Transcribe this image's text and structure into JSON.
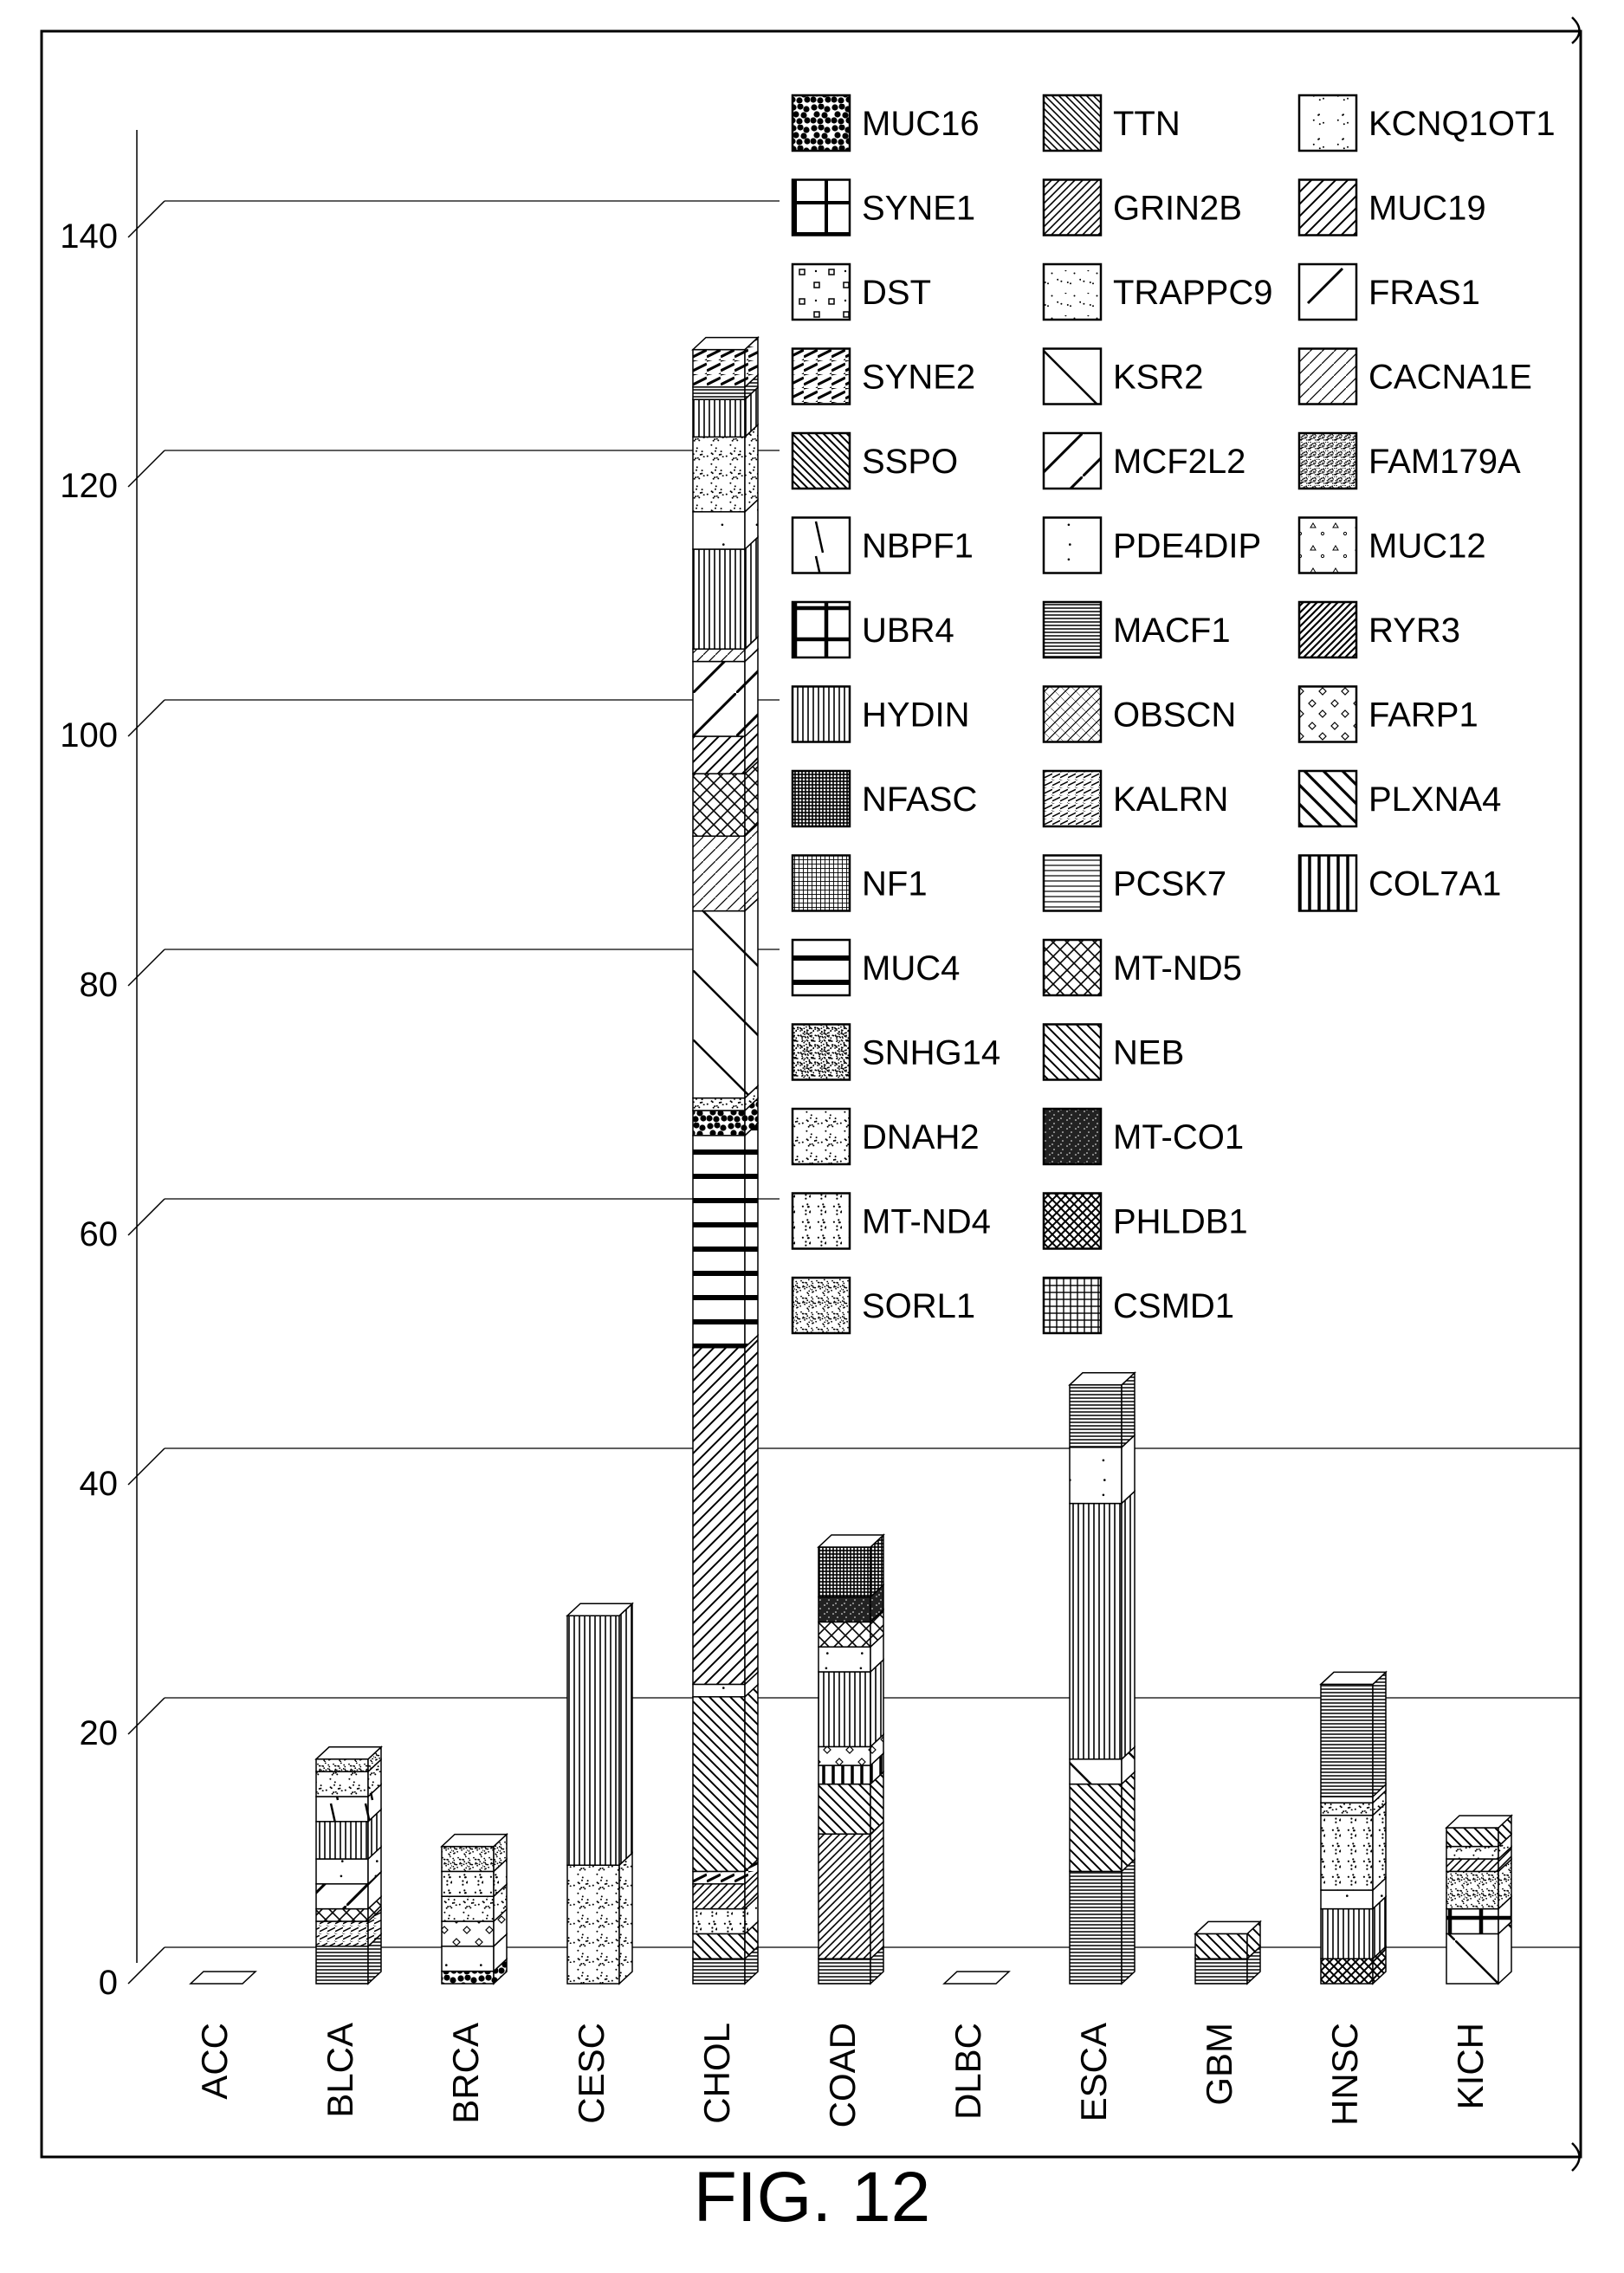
{
  "figure_label": "FIG. 12",
  "chart_data": {
    "type": "bar",
    "stacked": true,
    "projection": "3d",
    "title": "",
    "xlabel": "",
    "ylabel": "",
    "ylim": [
      0,
      150
    ],
    "yticks": [
      0,
      20,
      40,
      60,
      80,
      100,
      120,
      140
    ],
    "grid": "horizontal at 0, 20, 40",
    "legend_position": "top-right, three columns",
    "categories": [
      "ACC",
      "BLCA",
      "BRCA",
      "CESC",
      "CHOL",
      "COAD",
      "DLBC",
      "ESCA",
      "GBM",
      "HNSC",
      "KICH"
    ],
    "legend": [
      "MUC16",
      "SYNE1",
      "DST",
      "SYNE2",
      "SSPO",
      "NBPF1",
      "UBR4",
      "HYDIN",
      "NFASC",
      "NF1",
      "MUC4",
      "SNHG14",
      "DNAH2",
      "MT-ND4",
      "SORL1",
      "TTN",
      "GRIN2B",
      "TRAPPC9",
      "KSR2",
      "MCF2L2",
      "PDE4DIP",
      "MACF1",
      "OBSCN",
      "KALRN",
      "PCSK7",
      "MT-ND5",
      "NEB",
      "MT-CO1",
      "PHLDB1",
      "CSMD1",
      "KCNQ1OT1",
      "MUC19",
      "FRAS1",
      "CACNA1E",
      "FAM179A",
      "MUC12",
      "RYR3",
      "FARP1",
      "PLXNA4",
      "COL7A1"
    ],
    "stacks": {
      "ACC": [],
      "BLCA": [
        {
          "gene": "MACF1",
          "value": 3
        },
        {
          "gene": "KALRN",
          "value": 2
        },
        {
          "gene": "MT-ND5",
          "value": 1
        },
        {
          "gene": "MCF2L2",
          "value": 2
        },
        {
          "gene": "PDE4DIP",
          "value": 2
        },
        {
          "gene": "HYDIN",
          "value": 3
        },
        {
          "gene": "NBPF1",
          "value": 2
        },
        {
          "gene": "DNAH2",
          "value": 2
        },
        {
          "gene": "SORL1",
          "value": 1
        }
      ],
      "BRCA": [
        {
          "gene": "MUC16",
          "value": 1
        },
        {
          "gene": "PDE4DIP",
          "value": 2
        },
        {
          "gene": "FARP1",
          "value": 2
        },
        {
          "gene": "DNAH2",
          "value": 2
        },
        {
          "gene": "MT-ND4",
          "value": 2
        },
        {
          "gene": "SORL1",
          "value": 2
        }
      ],
      "CESC": [
        {
          "gene": "DNAH2",
          "value": 9.5
        },
        {
          "gene": "HYDIN",
          "value": 20
        }
      ],
      "CHOL": [
        {
          "gene": "MACF1",
          "value": 2
        },
        {
          "gene": "NEB",
          "value": 2
        },
        {
          "gene": "MT-ND4",
          "value": 2
        },
        {
          "gene": "GRIN2B",
          "value": 2
        },
        {
          "gene": "SYNE2",
          "value": 1
        },
        {
          "gene": "NEB",
          "value": 14
        },
        {
          "gene": "PDE4DIP",
          "value": 1
        },
        {
          "gene": "MUC19",
          "value": 27
        },
        {
          "gene": "MUC4",
          "value": 17
        },
        {
          "gene": "MUC16",
          "value": 2
        },
        {
          "gene": "DNAH2",
          "value": 1
        },
        {
          "gene": "KSR2",
          "value": 15
        },
        {
          "gene": "CACNA1E",
          "value": 6
        },
        {
          "gene": "MT-ND5",
          "value": 5
        },
        {
          "gene": "MUC19",
          "value": 3
        },
        {
          "gene": "MCF2L2",
          "value": 6
        },
        {
          "gene": "CACNA1E",
          "value": 1
        },
        {
          "gene": "HYDIN",
          "value": 8
        },
        {
          "gene": "PDE4DIP",
          "value": 3
        },
        {
          "gene": "DNAH2",
          "value": 6
        },
        {
          "gene": "HYDIN",
          "value": 3
        },
        {
          "gene": "MACF1",
          "value": 1
        },
        {
          "gene": "SYNE2",
          "value": 3
        }
      ],
      "COAD": [
        {
          "gene": "MACF1",
          "value": 2
        },
        {
          "gene": "GRIN2B",
          "value": 10
        },
        {
          "gene": "NEB",
          "value": 4
        },
        {
          "gene": "COL7A1",
          "value": 1.5
        },
        {
          "gene": "FARP1",
          "value": 1.5
        },
        {
          "gene": "HYDIN",
          "value": 6
        },
        {
          "gene": "PDE4DIP",
          "value": 2
        },
        {
          "gene": "MT-ND5",
          "value": 2
        },
        {
          "gene": "MT-CO1",
          "value": 2
        },
        {
          "gene": "NFASC",
          "value": 4
        }
      ],
      "DLBC": [],
      "ESCA": [
        {
          "gene": "MACF1",
          "value": 9
        },
        {
          "gene": "NEB",
          "value": 7
        },
        {
          "gene": "KSR2",
          "value": 2
        },
        {
          "gene": "HYDIN",
          "value": 20.5
        },
        {
          "gene": "PDE4DIP",
          "value": 4.5
        },
        {
          "gene": "MACF1",
          "value": 5
        }
      ],
      "GBM": [
        {
          "gene": "MACF1",
          "value": 2
        },
        {
          "gene": "NEB",
          "value": 2
        }
      ],
      "HNSC": [
        {
          "gene": "PHLDB1",
          "value": 2
        },
        {
          "gene": "HYDIN",
          "value": 4
        },
        {
          "gene": "PDE4DIP",
          "value": 1.5
        },
        {
          "gene": "MT-ND4",
          "value": 6
        },
        {
          "gene": "DNAH2",
          "value": 1
        },
        {
          "gene": "MUC4",
          "value": 0.5
        },
        {
          "gene": "MACF1",
          "value": 9
        }
      ],
      "KICH": [
        {
          "gene": "KSR2",
          "value": 4
        },
        {
          "gene": "UBR4",
          "value": 2
        },
        {
          "gene": "SORL1",
          "value": 3
        },
        {
          "gene": "GRIN2B",
          "value": 1
        },
        {
          "gene": "DNAH2",
          "value": 1
        },
        {
          "gene": "NEB",
          "value": 1.5
        }
      ]
    }
  }
}
